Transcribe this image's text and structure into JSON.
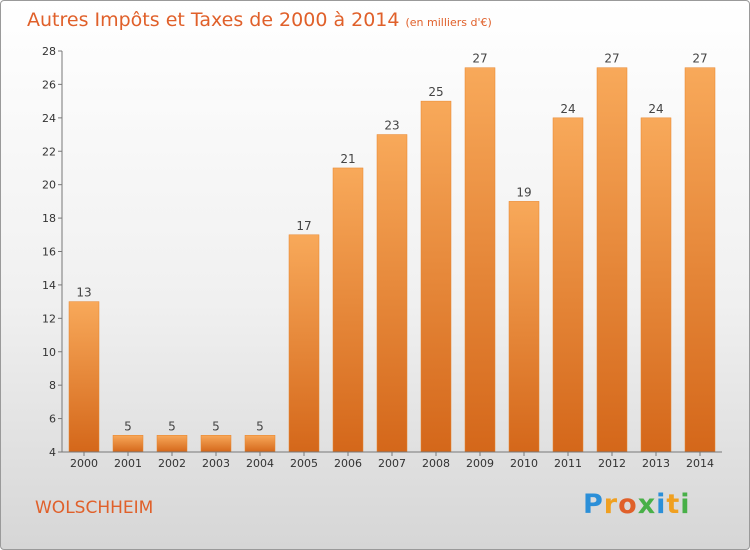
{
  "title": "Autres Impôts et Taxes de 2000 à 2014",
  "unit_label": "(en milliers d'€)",
  "commune": "WOLSCHHEIM",
  "brand": {
    "letters": [
      "P",
      "r",
      "o",
      "x",
      "i",
      "t",
      "i"
    ],
    "colors": [
      "#2b8fd8",
      "#f0a020",
      "#e0602a",
      "#48b048",
      "#2b8fd8",
      "#f0a020",
      "#48b048"
    ]
  },
  "colors": {
    "accent": "#e0602a",
    "bar_light": "#f8a95a",
    "bar_dark": "#d4671a"
  },
  "chart_data": {
    "type": "bar",
    "categories": [
      "2000",
      "2001",
      "2002",
      "2003",
      "2004",
      "2005",
      "2006",
      "2007",
      "2008",
      "2009",
      "2010",
      "2011",
      "2012",
      "2013",
      "2014"
    ],
    "values": [
      13,
      5,
      5,
      5,
      5,
      17,
      21,
      23,
      25,
      27,
      19,
      24,
      27,
      24,
      27
    ],
    "ylim": [
      4,
      28
    ],
    "yticks": [
      4,
      6,
      8,
      10,
      12,
      14,
      16,
      18,
      20,
      22,
      24,
      26,
      28
    ],
    "grid": false,
    "legend": "none"
  }
}
